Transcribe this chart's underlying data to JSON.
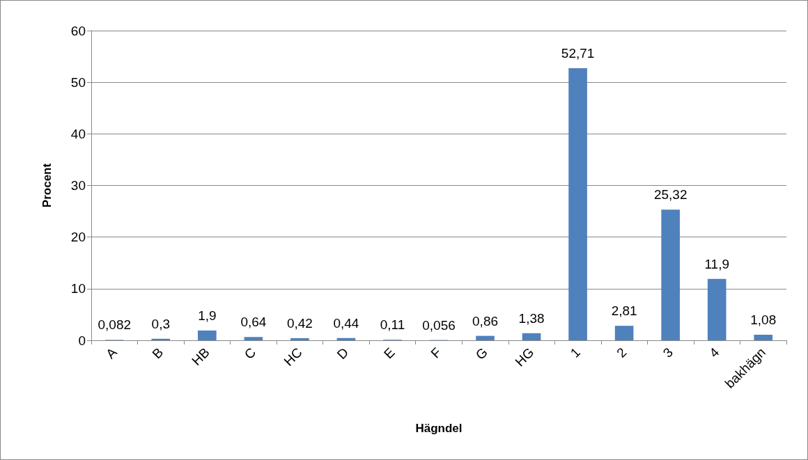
{
  "chart_data": {
    "type": "bar",
    "xlabel": "Hägndel",
    "ylabel": "Procent",
    "categories": [
      "A",
      "B",
      "HB",
      "C",
      "HC",
      "D",
      "E",
      "F",
      "G",
      "HG",
      "1",
      "2",
      "3",
      "4",
      "bakhägn"
    ],
    "values": [
      0.082,
      0.3,
      1.9,
      0.64,
      0.42,
      0.44,
      0.11,
      0.056,
      0.86,
      1.38,
      52.71,
      2.81,
      25.32,
      11.9,
      1.08
    ],
    "value_labels": [
      "0,082",
      "0,3",
      "1,9",
      "0,64",
      "0,42",
      "0,44",
      "0,11",
      "0,056",
      "0,86",
      "1,38",
      "52,71",
      "2,81",
      "25,32",
      "11,9",
      "1,08"
    ],
    "color": "#4f81bd",
    "ylim": [
      0,
      60
    ],
    "yticks": [
      0,
      10,
      20,
      30,
      40,
      50,
      60
    ],
    "grid": "y"
  }
}
